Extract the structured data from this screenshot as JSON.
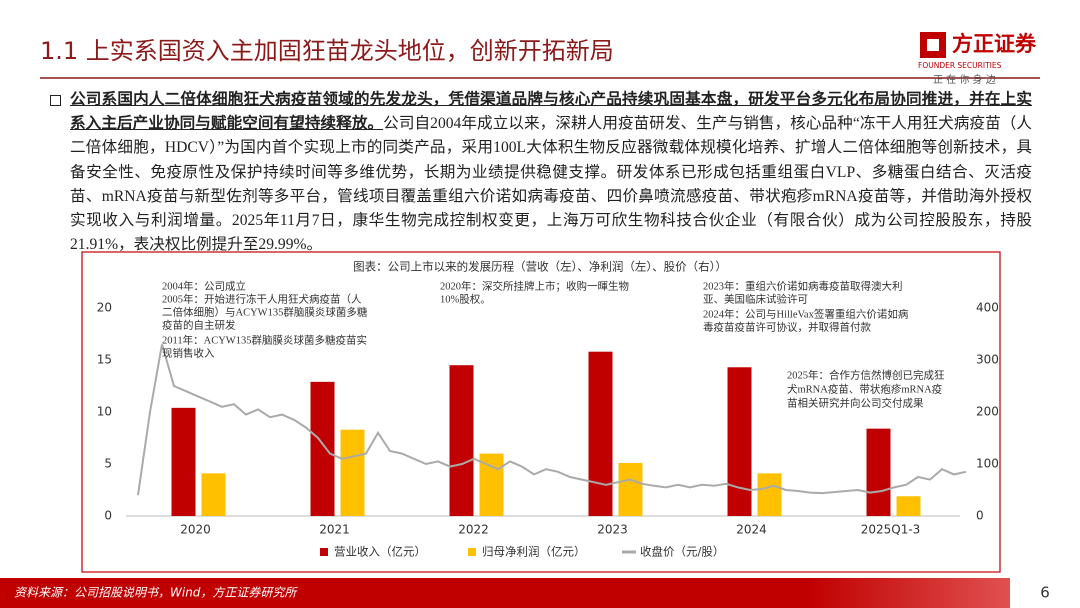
{
  "header": {
    "title": "1.1 上实系国资入主加固狂苗龙头地位，创新开拓新局"
  },
  "logo": {
    "name": "方正证券",
    "english": "FOUNDER SECURITIES",
    "slogan": "正 在 你 身 边"
  },
  "paragraph": {
    "bold": "公司系国内人二倍体细胞狂犬病疫苗领域的先发龙头，凭借渠道品牌与核心产品持续巩固基本盘，研发平台多元化布局协同推进，并在上实系入主后产业协同与赋能空间有望持续释放。",
    "text": "公司自2004年成立以来，深耕人用疫苗研发、生产与销售，核心品种“冻干人用狂犬病疫苗（人二倍体细胞，HDCV）”为国内首个实现上市的同类产品，采用100L大体积生物反应器微载体规模化培养、扩增人二倍体细胞等创新技术，具备安全性、免疫原性及保护持续时间等多维优势，长期为业绩提供稳健支撑。研发体系已形成包括重组蛋白VLP、多糖蛋白结合、灭活疫苗、mRNA疫苗与新型佐剂等多平台，管线项目覆盖重组六价诺如病毒疫苗、四价鼻喷流感疫苗、带状疱疹mRNA疫苗等，并借助海外授权实现收入与利润增量。2025年11月7日，康华生物完成控制权变更，上海万可欣生物科技合伙企业（有限合伙）成为公司控股股东，持股21.91%，表决权比例提升至29.99%。"
  },
  "chart_data": [
    {
      "type": "bar",
      "title": "图表：公司上市以来的发展历程（营收（左）、净利润（左）、股价（右））",
      "categories": [
        "2020",
        "2021",
        "2022",
        "2023",
        "2024",
        "2025Q1-3"
      ],
      "series": [
        {
          "name": "营业收入（亿元）",
          "color": "#c00000",
          "values": [
            10.4,
            12.9,
            14.5,
            15.8,
            14.3,
            8.4
          ]
        },
        {
          "name": "归母净利润（亿元）",
          "color": "#ffc000",
          "values": [
            4.1,
            8.3,
            6.0,
            5.1,
            4.1,
            1.9
          ]
        }
      ],
      "ylim": [
        0,
        20
      ],
      "yticks": [
        0,
        5,
        10,
        15,
        20
      ],
      "annotations": [
        "2004年：公司成立",
        "2005年：开始进行冻干人用狂犬病疫苗（人",
        "二倍体细胞）与ACYW135群脑膜炎球菌多糖",
        "疫苗的自主研发",
        "2011年：ACYW135群脑膜炎球菌多糖疫苗实",
        "现销售收入",
        "2020年：深交所挂牌上市；收购一暉生物",
        "10%股权。",
        "2023年：重组六价诺如病毒疫苗取得澳大利",
        "亚、美国临床试验许可",
        "2024年：公司与HilleVax签署重组六价诺如病",
        "毒疫苗疫苗许可协议，并取得首付款",
        "2025年：合作方信然博创已完成狂",
        "犬mRNA疫苗、带状疱疹mRNA疫",
        "苗相关研究并向公司交付成果"
      ]
    },
    {
      "type": "line",
      "series": [
        {
          "name": "收盘价（元/股）",
          "color": "#aaaaaa",
          "axis": "y2",
          "values": [
            40,
            200,
            330,
            250,
            240,
            230,
            220,
            210,
            215,
            195,
            205,
            190,
            195,
            185,
            170,
            150,
            120,
            110,
            115,
            120,
            160,
            125,
            120,
            110,
            100,
            105,
            95,
            100,
            110,
            100,
            90,
            105,
            95,
            80,
            90,
            85,
            75,
            70,
            65,
            60,
            65,
            70,
            62,
            58,
            55,
            60,
            55,
            60,
            58,
            62,
            55,
            50,
            52,
            58,
            50,
            48,
            45,
            44,
            46,
            48,
            50,
            45,
            48,
            55,
            60,
            75,
            70,
            90,
            80,
            85
          ]
        }
      ],
      "y2lim": [
        0,
        400
      ],
      "y2ticks": [
        0,
        100,
        200,
        300,
        400
      ]
    }
  ],
  "footer": {
    "source": "资料来源：公司招股说明书，Wind，方正证券研究所",
    "page": 6
  }
}
